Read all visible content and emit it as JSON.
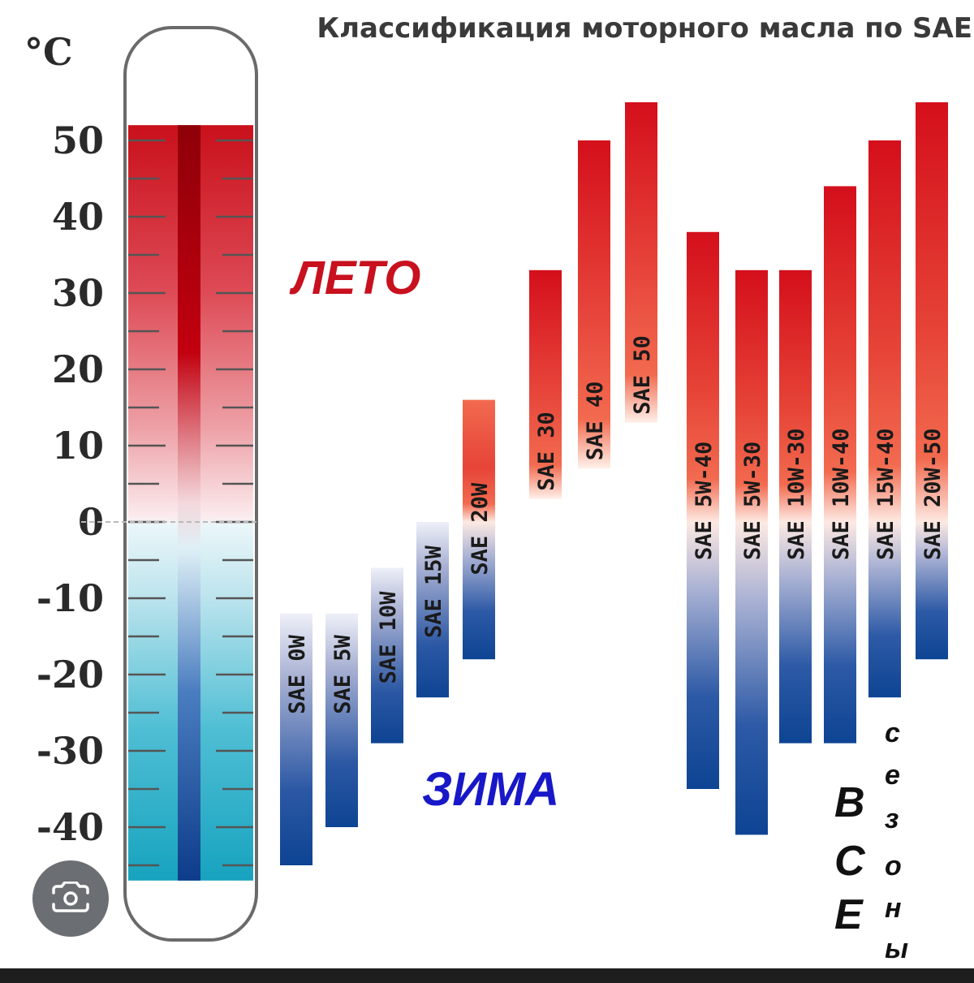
{
  "chart_data": {
    "type": "bar",
    "subtype": "floating-range",
    "title": "Классификация моторного масла по SAE",
    "unit_label": "°C",
    "y_ticks": [
      "50",
      "40",
      "30",
      "20",
      "10",
      "0",
      "-10",
      "-20",
      "-30",
      "-40"
    ],
    "y_tick_values": [
      50,
      40,
      30,
      20,
      10,
      0,
      -10,
      -20,
      -30,
      -40
    ],
    "ylim": [
      -48,
      58
    ],
    "grid": false,
    "annotations": {
      "summer": "ЛЕТО",
      "winter": "ЗИМА",
      "all_season_left": [
        "В",
        "С",
        "Е"
      ],
      "all_season_right": [
        "с",
        "е",
        "з",
        "о",
        "н",
        "ы"
      ]
    },
    "colors": {
      "hot": "#d40f1b",
      "warm": "#f26a4f",
      "cold": "#0d4493",
      "cool": "#aab2d4",
      "summer_text": "#c8101e",
      "winter_text": "#1818c8"
    },
    "bars": [
      {
        "label": "SAE 0W",
        "min": -45,
        "max": -12,
        "group": "winter"
      },
      {
        "label": "SAE 5W",
        "min": -40,
        "max": -12,
        "group": "winter"
      },
      {
        "label": "SAE 10W",
        "min": -29,
        "max": -6,
        "group": "winter"
      },
      {
        "label": "SAE 15W",
        "min": -23,
        "max": 0,
        "group": "winter"
      },
      {
        "label": "SAE 20W",
        "min": -18,
        "max": 16,
        "group": "winter-summer"
      },
      {
        "label": "SAE 30",
        "min": 3,
        "max": 33,
        "group": "summer"
      },
      {
        "label": "SAE 40",
        "min": 7,
        "max": 50,
        "group": "summer"
      },
      {
        "label": "SAE 50",
        "min": 13,
        "max": 55,
        "group": "summer"
      },
      {
        "label": "SAE 5W-40",
        "min": -35,
        "max": 38,
        "group": "all-season"
      },
      {
        "label": "SAE 5W-30",
        "min": -41,
        "max": 33,
        "group": "all-season"
      },
      {
        "label": "SAE 10W-30",
        "min": -29,
        "max": 33,
        "group": "all-season"
      },
      {
        "label": "SAE 10W-40",
        "min": -29,
        "max": 44,
        "group": "all-season"
      },
      {
        "label": "SAE 15W-40",
        "min": -23,
        "max": 50,
        "group": "all-season"
      },
      {
        "label": "SAE 20W-50",
        "min": -18,
        "max": 55,
        "group": "all-season"
      }
    ]
  }
}
